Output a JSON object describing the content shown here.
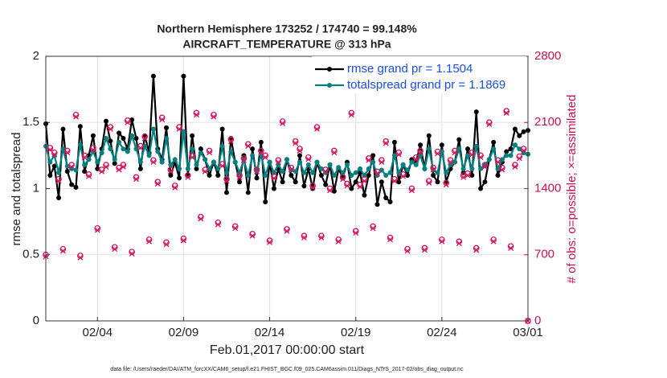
{
  "chart_data": {
    "type": "line",
    "title": "Northern Hemisphere 173252 / 174740 = 99.148%",
    "subtitle": "AIRCRAFT_TEMPERATURE @ 313 hPa",
    "x_label": "Feb.01,2017 00:00:00 start",
    "y_label": "rmse and totalspread",
    "y2_label": "# of obs: o=possible; ×=assimilated",
    "footnote": "data file: /Users/raeder/DAI/ATM_forcXX/CAM6_setup/f.e21.FHIST_BGC.f09_025.CAM6assim.011/Diags_NTrS_2017-02/obs_diag_output.nc",
    "xlim": [
      0,
      28
    ],
    "xticks": [
      {
        "value": 3,
        "label": "02/04"
      },
      {
        "value": 8,
        "label": "02/09"
      },
      {
        "value": 13,
        "label": "02/14"
      },
      {
        "value": 18,
        "label": "02/19"
      },
      {
        "value": 23,
        "label": "02/24"
      },
      {
        "value": 28,
        "label": "03/01"
      }
    ],
    "ylim": [
      0,
      2
    ],
    "yticks": [
      0,
      0.5,
      1,
      1.5,
      2
    ],
    "y2lim": [
      0,
      2800
    ],
    "y2ticks": [
      0,
      700,
      1400,
      2100,
      2800
    ],
    "grid": true,
    "legend": "upper right",
    "x": [
      0,
      0.25,
      0.5,
      0.75,
      1,
      1.25,
      1.5,
      1.75,
      2,
      2.25,
      2.5,
      2.75,
      3,
      3.25,
      3.5,
      3.75,
      4,
      4.25,
      4.5,
      4.75,
      5,
      5.25,
      5.5,
      5.75,
      6,
      6.25,
      6.5,
      6.75,
      7,
      7.25,
      7.5,
      7.75,
      8,
      8.25,
      8.5,
      8.75,
      9,
      9.25,
      9.5,
      9.75,
      10,
      10.25,
      10.5,
      10.75,
      11,
      11.25,
      11.5,
      11.75,
      12,
      12.25,
      12.5,
      12.75,
      13,
      13.25,
      13.5,
      13.75,
      14,
      14.25,
      14.5,
      14.75,
      15,
      15.25,
      15.5,
      15.75,
      16,
      16.25,
      16.5,
      16.75,
      17,
      17.25,
      17.5,
      17.75,
      18,
      18.25,
      18.5,
      18.75,
      19,
      19.25,
      19.5,
      19.75,
      20,
      20.25,
      20.5,
      20.75,
      21,
      21.25,
      21.5,
      21.75,
      22,
      22.25,
      22.5,
      22.75,
      23,
      23.25,
      23.5,
      23.75,
      24,
      24.25,
      24.5,
      24.75,
      25,
      25.25,
      25.5,
      25.75,
      26,
      26.25,
      26.5,
      26.75,
      27,
      27.25,
      27.5,
      27.75,
      28
    ],
    "series": [
      {
        "name": "rmse grand pr = 1.1504",
        "color": "#000000",
        "marker": "dot",
        "line": true,
        "values": [
          1.49,
          1.1,
          1.17,
          0.93,
          1.45,
          1.13,
          1.03,
          1.01,
          1.47,
          1.13,
          1.25,
          1.4,
          1.15,
          1.3,
          1.51,
          1.36,
          1.19,
          1.42,
          1.38,
          1.3,
          1.52,
          1.38,
          1.15,
          1.4,
          1.27,
          1.85,
          1.3,
          1.22,
          1.46,
          1.1,
          1.2,
          1.08,
          1.85,
          1.1,
          1.4,
          1.15,
          1.3,
          1.22,
          1.1,
          1.2,
          1.1,
          1.45,
          0.97,
          1.38,
          1.2,
          1.05,
          1.25,
          0.97,
          1.3,
          1.08,
          1.35,
          0.9,
          1.2,
          1.0,
          1.15,
          1.05,
          1.22,
          1.1,
          1.05,
          1.25,
          1.02,
          1.15,
          1.0,
          1.2,
          1.1,
          1.03,
          1.18,
          0.98,
          1.15,
          1.08,
          1.2,
          1.0,
          1.05,
          1.12,
          0.95,
          1.1,
          1.25,
          0.88,
          1.05,
          0.93,
          0.9,
          1.35,
          1.05,
          1.18,
          1.1,
          1.22,
          1.2,
          1.33,
          1.15,
          1.4,
          1.1,
          1.05,
          1.33,
          1.05,
          1.15,
          1.2,
          1.37,
          1.12,
          1.3,
          1.1,
          1.58,
          1.0,
          1.05,
          1.22,
          1.35,
          1.1,
          1.2,
          1.28,
          1.3,
          1.45,
          1.4,
          1.43,
          1.44
        ]
      },
      {
        "name": "totalspread grand pr = 1.1869",
        "color": "#008080",
        "marker": "dot",
        "line": true,
        "values": [
          1.32,
          1.2,
          1.25,
          1.12,
          1.3,
          1.17,
          1.15,
          1.14,
          1.33,
          1.18,
          1.22,
          1.28,
          1.2,
          1.27,
          1.38,
          1.3,
          1.22,
          1.35,
          1.3,
          1.28,
          1.4,
          1.3,
          1.2,
          1.32,
          1.25,
          1.45,
          1.28,
          1.2,
          1.38,
          1.18,
          1.22,
          1.15,
          1.43,
          1.15,
          1.3,
          1.18,
          1.27,
          1.22,
          1.15,
          1.2,
          1.15,
          1.32,
          1.12,
          1.28,
          1.2,
          1.12,
          1.22,
          1.1,
          1.25,
          1.13,
          1.26,
          1.1,
          1.2,
          1.12,
          1.18,
          1.13,
          1.22,
          1.14,
          1.13,
          1.2,
          1.12,
          1.18,
          1.12,
          1.2,
          1.15,
          1.12,
          1.18,
          1.1,
          1.16,
          1.12,
          1.18,
          1.1,
          1.12,
          1.15,
          1.1,
          1.15,
          1.2,
          1.1,
          1.14,
          1.1,
          1.12,
          1.25,
          1.12,
          1.18,
          1.14,
          1.2,
          1.18,
          1.25,
          1.15,
          1.3,
          1.14,
          1.12,
          1.28,
          1.12,
          1.18,
          1.2,
          1.3,
          1.15,
          1.25,
          1.15,
          1.32,
          1.15,
          1.18,
          1.22,
          1.3,
          1.15,
          1.22,
          1.25,
          1.25,
          1.33,
          1.3,
          1.27,
          1.26
        ]
      },
      {
        "color": "#d6165c",
        "marker": "o",
        "line": false,
        "axis": "y2",
        "values": [
          700,
          1830,
          1780,
          1500,
          760,
          1800,
          1650,
          2180,
          690,
          1750,
          1550,
          1830,
          980,
          1600,
          1650,
          2050,
          780,
          1620,
          1650,
          2120,
          730,
          1520,
          1850,
          1950,
          860,
          1700,
          1470,
          2150,
          830,
          1600,
          1430,
          2050,
          870,
          1540,
          1750,
          2200,
          1100,
          1600,
          1800,
          2180,
          1040,
          1660,
          1500,
          1920,
          1000,
          1540,
          1720,
          1870,
          920,
          1600,
          1800,
          1750,
          850,
          1530,
          1700,
          2110,
          970,
          1620,
          1900,
          1820,
          900,
          1730,
          1430,
          2050,
          900,
          1600,
          1400,
          1800,
          860,
          1520,
          1450,
          2200,
          950,
          1440,
          1500,
          1720,
          1000,
          1580,
          1700,
          1900,
          880,
          1500,
          1780,
          1550,
          760,
          1400,
          1730,
          1800,
          770,
          1480,
          1620,
          1790,
          860,
          1460,
          1700,
          1800,
          840,
          1540,
          1560,
          1780,
          770,
          1750,
          1650,
          2100,
          860,
          1700,
          1620,
          2220,
          790,
          1650,
          1740,
          1820,
          0
        ]
      },
      {
        "color": "#d6165c",
        "marker": "x",
        "line": false,
        "axis": "y2",
        "values": [
          680,
          1810,
          1760,
          1480,
          740,
          1780,
          1630,
          2160,
          670,
          1730,
          1530,
          1810,
          960,
          1580,
          1630,
          2030,
          760,
          1600,
          1630,
          2100,
          710,
          1500,
          1830,
          1930,
          840,
          1680,
          1450,
          2130,
          810,
          1580,
          1410,
          2030,
          850,
          1520,
          1730,
          2180,
          1080,
          1580,
          1780,
          2160,
          1020,
          1640,
          1480,
          1900,
          980,
          1520,
          1700,
          1850,
          900,
          1580,
          1780,
          1730,
          830,
          1510,
          1680,
          2090,
          950,
          1600,
          1880,
          1800,
          880,
          1710,
          1410,
          2030,
          880,
          1580,
          1380,
          1780,
          840,
          1500,
          1430,
          2180,
          930,
          1420,
          1480,
          1700,
          980,
          1560,
          1680,
          1880,
          860,
          1480,
          1760,
          1530,
          740,
          1380,
          1710,
          1780,
          750,
          1460,
          1600,
          1770,
          840,
          1440,
          1680,
          1780,
          820,
          1520,
          1540,
          1760,
          750,
          1730,
          1630,
          2080,
          840,
          1680,
          1600,
          2200,
          770,
          1630,
          1720,
          1800,
          0
        ]
      }
    ]
  }
}
